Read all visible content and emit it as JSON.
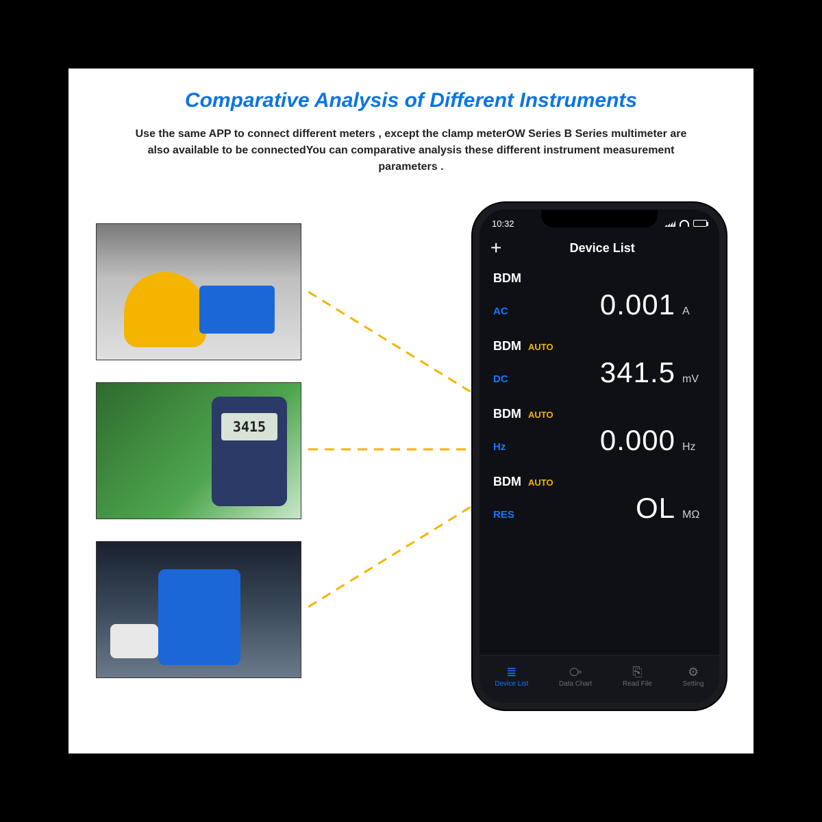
{
  "title": "Comparative Analysis of Different Instruments",
  "subtitle": "Use the same APP to connect different meters , except the clamp meterOW Series B Series multimeter are also available to be connectedYou can comparative analysis these different instrument measurement parameters .",
  "colors": {
    "title": "#0b74e5",
    "page_bg": "#000000",
    "card_bg": "#ffffff",
    "phone_bg": "#0e1016",
    "mode_label": "#1d74ff",
    "auto_label": "#f5b400",
    "dashed_line": "#f5b400"
  },
  "thumbnails": [
    {
      "name": "clamp-meter-in-panel"
    },
    {
      "name": "multimeter-pcb-test"
    },
    {
      "name": "multimeter-car-engine"
    }
  ],
  "phone": {
    "status_time": "10:32",
    "header_title": "Device List",
    "add_icon": "+",
    "readings": [
      {
        "device": "BDM",
        "auto": "",
        "mode": "AC",
        "value": "0.001",
        "unit": "A"
      },
      {
        "device": "BDM",
        "auto": "AUTO",
        "mode": "DC",
        "value": "341.5",
        "unit": "mV"
      },
      {
        "device": "BDM",
        "auto": "AUTO",
        "mode": "Hz",
        "value": "0.000",
        "unit": "Hz"
      },
      {
        "device": "BDM",
        "auto": "AUTO",
        "mode": "RES",
        "value": "OL",
        "unit": "MΩ"
      }
    ],
    "tabs": [
      {
        "label": "Device List",
        "icon": "≣",
        "active": true
      },
      {
        "label": "Data Chart",
        "icon": "⧂",
        "active": false
      },
      {
        "label": "Read File",
        "icon": "⎘",
        "active": false
      },
      {
        "label": "Setting",
        "icon": "⚙",
        "active": false
      }
    ]
  }
}
